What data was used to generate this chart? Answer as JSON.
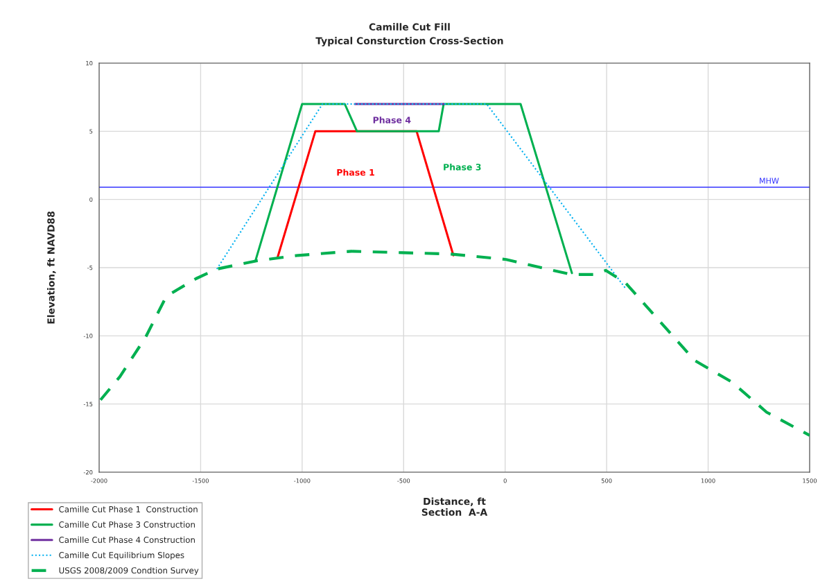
{
  "chart_data": {
    "type": "line",
    "title": "Camille Cut Fill",
    "subtitle": "Typical Consturction Cross-Section",
    "xlabel": "Distance, ft\nSection  A-A",
    "ylabel": "Elevation, ft NAVD88",
    "xlim": [
      -2000,
      1500
    ],
    "xticks": [
      -2000,
      -1500,
      -1000,
      -500,
      0,
      500,
      1000,
      1500
    ],
    "ylim": [
      -20,
      10
    ],
    "yticks": [
      -20,
      -15,
      -10,
      -5,
      0,
      5,
      10
    ],
    "grid": true,
    "legend": "bottom left",
    "marker": "none",
    "series": [
      {
        "name": "Camille Cut Phase 1  Construction",
        "color": "#ff0000",
        "line_style": "solid",
        "x": [
          -1120,
          -935,
          -436,
          -255
        ],
        "values": [
          -4.2,
          5,
          5,
          -4.1
        ]
      },
      {
        "name": "Camille Cut Phase 3 Construction",
        "color": "#00b050",
        "line_style": "solid",
        "x": [
          -1230,
          -1000,
          -790,
          -730,
          -327,
          -303,
          76,
          329
        ],
        "values": [
          -4.5,
          7,
          7,
          5,
          5,
          7,
          7,
          -5.4
        ]
      },
      {
        "name": "Camille Cut Phase 4 Construction",
        "color": "#7030a0",
        "line_style": "solid",
        "x": [
          -740,
          -303
        ],
        "values": [
          7,
          7
        ]
      },
      {
        "name": "Camille Cut Equilibrium Slopes",
        "color": "#00b0f0",
        "line_style": "dotted",
        "x": [
          -1420,
          -900,
          -91,
          592
        ],
        "values": [
          -5.1,
          7,
          7,
          -6.5
        ]
      },
      {
        "name": "USGS 2008/2009 Condtion Survey",
        "color": "#00b050",
        "line_style": "dashed",
        "x": [
          -1993,
          -1898,
          -1771,
          -1669,
          -1522,
          -1420,
          -1225,
          -1020,
          -757,
          -508,
          -269,
          5,
          178,
          325,
          435,
          496,
          592,
          933,
          1118,
          1288,
          1500
        ],
        "values": [
          -14.7,
          -13.0,
          -10.1,
          -7.1,
          -5.8,
          -5.1,
          -4.5,
          -4.1,
          -3.8,
          -3.9,
          -4.0,
          -4.4,
          -5.0,
          -5.5,
          -5.5,
          -5.2,
          -6.1,
          -11.8,
          -13.4,
          -15.6,
          -17.3
        ]
      }
    ],
    "ref_lines": [
      {
        "axis": "y",
        "value": 0.9,
        "label": "MHW",
        "color": "#3333ff"
      }
    ],
    "annotations": [
      "Phase 4",
      "Phase 1",
      "Phase 3"
    ]
  }
}
